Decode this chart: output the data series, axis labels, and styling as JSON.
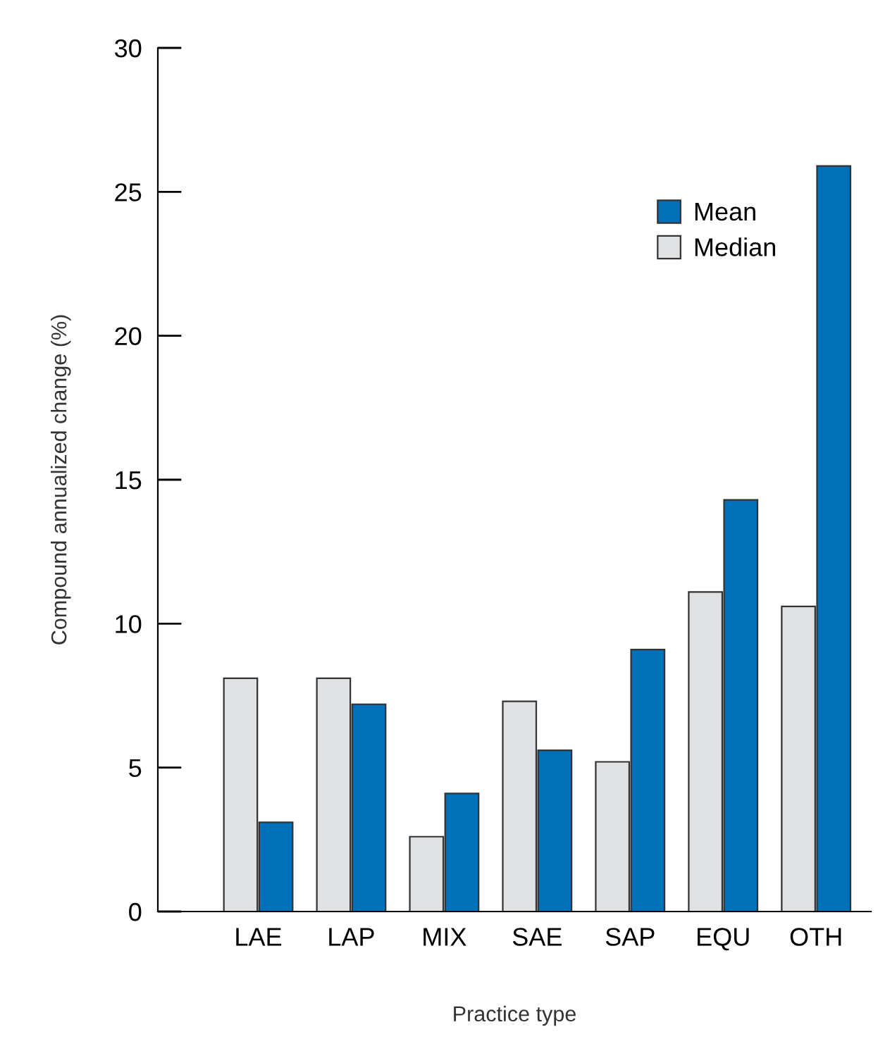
{
  "chart_data": {
    "type": "bar",
    "xlabel": "Practice type",
    "ylabel": "Compound annualized change (%)",
    "categories": [
      "LAE",
      "LAP",
      "MIX",
      "SAE",
      "SAP",
      "EQU",
      "OTH"
    ],
    "series": [
      {
        "name": "Median",
        "color": "#e0e1e3",
        "values": [
          8.1,
          8.1,
          2.6,
          7.3,
          5.2,
          11.1,
          10.6
        ]
      },
      {
        "name": "Mean",
        "color": "#0070b8",
        "values": [
          3.1,
          7.2,
          4.1,
          5.6,
          9.1,
          14.3,
          25.9
        ]
      }
    ],
    "ylim": [
      0,
      30
    ],
    "yticks": [
      0,
      5,
      10,
      15,
      20,
      25,
      30
    ],
    "grid": false,
    "legend": "top right"
  }
}
